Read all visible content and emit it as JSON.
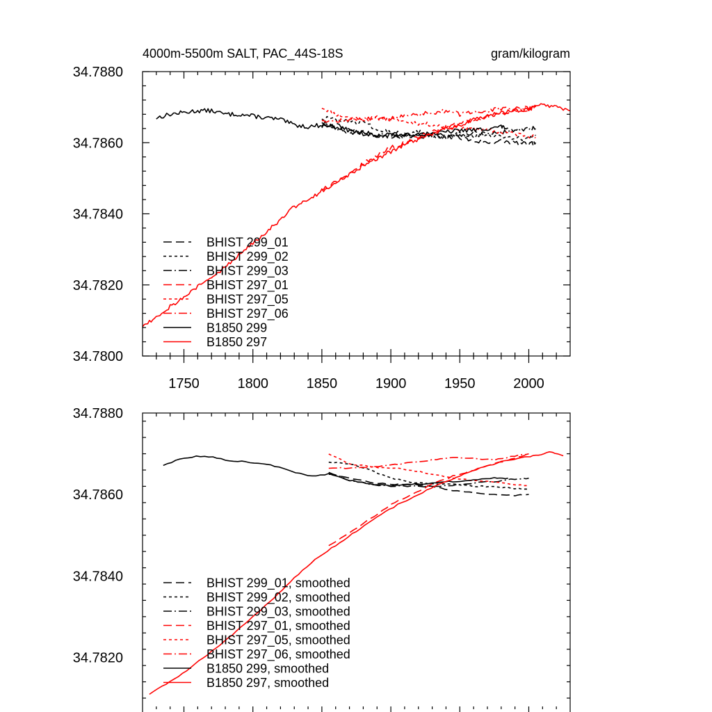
{
  "figure": {
    "title_left": "4000m-5500m SALT, PAC_44S-18S",
    "title_right": "gram/kilogram",
    "colors": {
      "black": "#000000",
      "red": "#ff0000"
    }
  },
  "chart_data": [
    {
      "type": "line",
      "panel": "top",
      "xlim": [
        1720,
        2030
      ],
      "ylim": [
        34.78,
        34.788
      ],
      "xticks": [
        1750,
        1800,
        1850,
        1900,
        1950,
        2000
      ],
      "yticks": [
        34.78,
        34.782,
        34.784,
        34.786,
        34.788
      ],
      "ytick_labels": [
        "34.7800",
        "34.7820",
        "34.7840",
        "34.7860",
        "34.7880"
      ],
      "xtick_labels": [
        "1750",
        "1800",
        "1850",
        "1900",
        "1950",
        "2000"
      ],
      "legend": "lower-left",
      "series": [
        {
          "name": "BHIST 299_01",
          "color": "#000000",
          "dash": "long-dash",
          "x": [
            1850,
            1860,
            1870,
            1880,
            1890,
            1900,
            1910,
            1920,
            1930,
            1940,
            1950,
            1960,
            1970,
            1980,
            1990,
            2000,
            2005
          ],
          "y": [
            34.78645,
            34.7865,
            34.78635,
            34.7863,
            34.7862,
            34.78615,
            34.7862,
            34.78615,
            34.78625,
            34.7862,
            34.78615,
            34.78605,
            34.786,
            34.78605,
            34.786,
            34.78595,
            34.786
          ]
        },
        {
          "name": "BHIST 299_02",
          "color": "#000000",
          "dash": "short-dash",
          "x": [
            1850,
            1860,
            1870,
            1880,
            1890,
            1900,
            1910,
            1920,
            1930,
            1940,
            1950,
            1960,
            1970,
            1980,
            1990,
            2000,
            2005
          ],
          "y": [
            34.7867,
            34.78665,
            34.7866,
            34.78655,
            34.7864,
            34.7863,
            34.78625,
            34.7863,
            34.7862,
            34.78615,
            34.78625,
            34.7862,
            34.7862,
            34.78615,
            34.7861,
            34.78615,
            34.7862
          ]
        },
        {
          "name": "BHIST 299_03",
          "color": "#000000",
          "dash": "dash-dot",
          "x": [
            1850,
            1860,
            1870,
            1880,
            1890,
            1900,
            1910,
            1920,
            1930,
            1940,
            1950,
            1960,
            1970,
            1980,
            1990,
            2000,
            2005
          ],
          "y": [
            34.7866,
            34.7864,
            34.7863,
            34.78625,
            34.7862,
            34.7862,
            34.78615,
            34.78625,
            34.7862,
            34.78615,
            34.7862,
            34.7863,
            34.78625,
            34.7863,
            34.78635,
            34.7864,
            34.7864
          ]
        },
        {
          "name": "BHIST 297_01",
          "color": "#ff0000",
          "dash": "long-dash",
          "x": [
            1850,
            1860,
            1870,
            1880,
            1890,
            1900,
            1910,
            1920,
            1930,
            1940,
            1950,
            1960,
            1970,
            1980,
            1990,
            2000,
            2005
          ],
          "y": [
            34.7847,
            34.7849,
            34.78515,
            34.7854,
            34.78565,
            34.78585,
            34.786,
            34.78615,
            34.7863,
            34.78645,
            34.78655,
            34.78665,
            34.78675,
            34.7868,
            34.7869,
            34.78695,
            34.787
          ]
        },
        {
          "name": "BHIST 297_05",
          "color": "#ff0000",
          "dash": "short-dash",
          "x": [
            1850,
            1860,
            1870,
            1880,
            1890,
            1900,
            1910,
            1920,
            1930,
            1940,
            1950,
            1960,
            1970,
            1980,
            1990,
            2000,
            2005
          ],
          "y": [
            34.787,
            34.7868,
            34.7867,
            34.78665,
            34.7867,
            34.78665,
            34.7866,
            34.78655,
            34.7865,
            34.78645,
            34.7864,
            34.7864,
            34.78635,
            34.7863,
            34.78625,
            34.7862,
            34.78615
          ]
        },
        {
          "name": "BHIST 297_06",
          "color": "#ff0000",
          "dash": "dash-dot",
          "x": [
            1850,
            1860,
            1870,
            1880,
            1890,
            1900,
            1910,
            1920,
            1930,
            1940,
            1950,
            1960,
            1970,
            1980,
            1990,
            2000,
            2005
          ],
          "y": [
            34.78665,
            34.7866,
            34.78665,
            34.7867,
            34.78665,
            34.7867,
            34.78675,
            34.7868,
            34.78685,
            34.7869,
            34.7868,
            34.78685,
            34.7869,
            34.78695,
            34.78695,
            34.787,
            34.787
          ]
        },
        {
          "name": "B1850 299",
          "color": "#000000",
          "dash": "solid",
          "x": [
            1730,
            1740,
            1750,
            1760,
            1770,
            1780,
            1790,
            1800,
            1810,
            1820,
            1830,
            1840,
            1850,
            1860,
            1870,
            1880,
            1890,
            1900,
            1910,
            1920,
            1930,
            1940,
            1950,
            1960,
            1970,
            1980,
            1985
          ],
          "y": [
            34.7867,
            34.7868,
            34.78685,
            34.7869,
            34.7869,
            34.7868,
            34.7868,
            34.78675,
            34.7867,
            34.78665,
            34.7865,
            34.78645,
            34.7865,
            34.78645,
            34.78635,
            34.78625,
            34.7862,
            34.78625,
            34.7862,
            34.78625,
            34.78625,
            34.7863,
            34.78635,
            34.78635,
            34.7864,
            34.78645,
            34.7864
          ]
        },
        {
          "name": "B1850 297",
          "color": "#ff0000",
          "dash": "solid",
          "x": [
            1720,
            1730,
            1740,
            1750,
            1760,
            1770,
            1780,
            1790,
            1800,
            1810,
            1820,
            1830,
            1840,
            1850,
            1860,
            1870,
            1880,
            1890,
            1900,
            1910,
            1920,
            1930,
            1940,
            1950,
            1960,
            1970,
            1980,
            1990,
            2000,
            2010,
            2020,
            2030
          ],
          "y": [
            34.78085,
            34.7811,
            34.7814,
            34.78165,
            34.78195,
            34.7822,
            34.7825,
            34.78285,
            34.7832,
            34.7835,
            34.78385,
            34.7842,
            34.7844,
            34.78465,
            34.78485,
            34.7851,
            34.78535,
            34.78555,
            34.78575,
            34.78595,
            34.7861,
            34.78625,
            34.7864,
            34.7865,
            34.78665,
            34.78675,
            34.78685,
            34.7869,
            34.78695,
            34.78705,
            34.787,
            34.7869
          ]
        }
      ]
    },
    {
      "type": "line",
      "panel": "bottom",
      "xlim": [
        1720,
        2030
      ],
      "ylim": [
        34.781,
        34.788
      ],
      "xticks": [
        1750,
        1800,
        1850,
        1900,
        1950,
        2000
      ],
      "yticks": [
        34.782,
        34.784,
        34.786,
        34.788
      ],
      "ytick_labels": [
        "34.7820",
        "34.7840",
        "34.7860",
        "34.7880"
      ],
      "legend": "lower-left",
      "series": [
        {
          "name": "BHIST 299_01, smoothed",
          "color": "#000000",
          "dash": "long-dash",
          "x": [
            1855,
            1870,
            1885,
            1900,
            1915,
            1930,
            1945,
            1960,
            1975,
            1990,
            2000
          ],
          "y": [
            34.7865,
            34.7864,
            34.7863,
            34.78625,
            34.78625,
            34.7862,
            34.7861,
            34.78605,
            34.786,
            34.78598,
            34.786
          ]
        },
        {
          "name": "BHIST 299_02, smoothed",
          "color": "#000000",
          "dash": "short-dash",
          "x": [
            1855,
            1870,
            1885,
            1900,
            1915,
            1930,
            1945,
            1960,
            1975,
            1990,
            2000
          ],
          "y": [
            34.7868,
            34.78675,
            34.7866,
            34.7864,
            34.7863,
            34.78625,
            34.78625,
            34.7862,
            34.7862,
            34.78615,
            34.78612
          ]
        },
        {
          "name": "BHIST 299_03, smoothed",
          "color": "#000000",
          "dash": "dash-dot",
          "x": [
            1855,
            1870,
            1885,
            1900,
            1915,
            1930,
            1945,
            1960,
            1975,
            1990,
            2000
          ],
          "y": [
            34.78655,
            34.78635,
            34.78625,
            34.7862,
            34.7862,
            34.7862,
            34.78622,
            34.78628,
            34.78632,
            34.78638,
            34.7864
          ]
        },
        {
          "name": "BHIST 297_01, smoothed",
          "color": "#ff0000",
          "dash": "long-dash",
          "x": [
            1855,
            1870,
            1885,
            1900,
            1915,
            1930,
            1945,
            1960,
            1975,
            1990,
            2000
          ],
          "y": [
            34.78475,
            34.78505,
            34.7854,
            34.78575,
            34.786,
            34.78625,
            34.78645,
            34.7866,
            34.78675,
            34.7869,
            34.787
          ]
        },
        {
          "name": "BHIST 297_05, smoothed",
          "color": "#ff0000",
          "dash": "short-dash",
          "x": [
            1855,
            1870,
            1885,
            1900,
            1915,
            1930,
            1945,
            1960,
            1975,
            1990,
            2000
          ],
          "y": [
            34.787,
            34.78675,
            34.78668,
            34.78665,
            34.7866,
            34.7865,
            34.7864,
            34.78635,
            34.7863,
            34.78625,
            34.7862
          ]
        },
        {
          "name": "BHIST 297_06, smoothed",
          "color": "#ff0000",
          "dash": "dash-dot",
          "x": [
            1855,
            1870,
            1885,
            1900,
            1915,
            1930,
            1945,
            1960,
            1975,
            1990,
            2000
          ],
          "y": [
            34.78665,
            34.78665,
            34.78668,
            34.78672,
            34.78678,
            34.78685,
            34.78692,
            34.78688,
            34.78685,
            34.78695,
            34.787
          ]
        },
        {
          "name": "B1850 299, smoothed",
          "color": "#000000",
          "dash": "solid",
          "x": [
            1735,
            1750,
            1765,
            1780,
            1795,
            1810,
            1825,
            1840,
            1855,
            1870,
            1885,
            1900,
            1915,
            1930,
            1945,
            1960,
            1975,
            1985
          ],
          "y": [
            34.78672,
            34.7869,
            34.78695,
            34.78685,
            34.7868,
            34.78675,
            34.7866,
            34.78645,
            34.7865,
            34.78635,
            34.78625,
            34.78622,
            34.78625,
            34.78628,
            34.78632,
            34.78635,
            34.7864,
            34.7864
          ]
        },
        {
          "name": "B1850 297, smoothed",
          "color": "#ff0000",
          "dash": "solid",
          "x": [
            1725,
            1740,
            1755,
            1770,
            1785,
            1800,
            1815,
            1830,
            1845,
            1860,
            1875,
            1890,
            1905,
            1920,
            1935,
            1950,
            1965,
            1980,
            1995,
            2005,
            2015,
            2025
          ],
          "y": [
            34.7811,
            34.7814,
            34.78175,
            34.78215,
            34.78255,
            34.783,
            34.78345,
            34.78395,
            34.7844,
            34.78475,
            34.7851,
            34.78545,
            34.78575,
            34.786,
            34.78625,
            34.78645,
            34.78665,
            34.7868,
            34.7869,
            34.78695,
            34.78705,
            34.78695
          ]
        }
      ]
    }
  ]
}
